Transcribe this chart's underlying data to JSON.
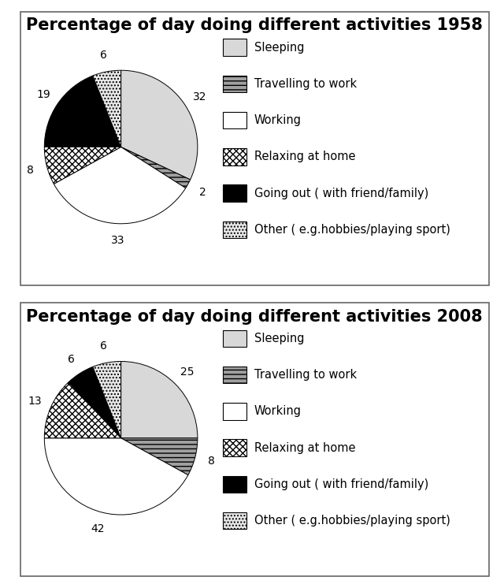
{
  "title_1958": "Percentage of day doing different activities 1958",
  "title_2008": "Percentage of day doing different activities 2008",
  "values_1958": [
    32,
    2,
    33,
    8,
    19,
    6
  ],
  "values_2008": [
    25,
    8,
    42,
    13,
    6,
    6
  ],
  "labels": [
    "Sleeping",
    "Travelling to work",
    "Working",
    "Relaxing at home",
    "Going out ( with friend/family)",
    "Other ( e.g.hobbies/playing sport)"
  ],
  "face_colors": [
    "#d8d8d8",
    "#a0a0a0",
    "#ffffff",
    "#ffffff",
    "#000000",
    "#e8e8e8"
  ],
  "hatch_patterns": [
    "",
    "---",
    "",
    "xxxx",
    "",
    "...."
  ],
  "edge_color": "#000000",
  "background": "#ffffff",
  "title_fontsize": 15,
  "label_fontsize": 10,
  "legend_fontsize": 10.5,
  "panel_border_color": "#555555"
}
